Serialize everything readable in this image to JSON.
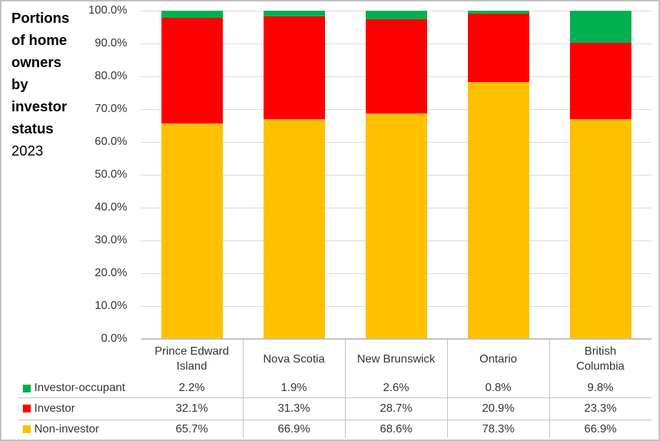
{
  "window": {
    "background": "#FFFFFF",
    "border_color": "#BFBFBF"
  },
  "title": {
    "lines": "Portions\nof home\nowners\nby\ninvestor\nstatus",
    "year": "2023",
    "full_text": "Portions of home owners by investor status 2023"
  },
  "chart_data": {
    "type": "bar",
    "subtype": "stacked-100-percent-column",
    "title": "Portions of home owners by investor status",
    "year": "2023",
    "grid": true,
    "legend_position": "table-left",
    "categories": [
      "Prince Edward Island",
      "Nova Scotia",
      "New Brunswick",
      "Ontario",
      "British Columbia"
    ],
    "category_labels": [
      "Prince Edward\nIsland",
      "Nova Scotia",
      "New Brunswick",
      "Ontario",
      "British\nColumbia"
    ],
    "series": [
      {
        "name": "Non-investor",
        "color": "#FFC000",
        "values": [
          65.7,
          66.9,
          68.6,
          78.3,
          66.9
        ]
      },
      {
        "name": "Investor",
        "color": "#FF0000",
        "values": [
          32.1,
          31.3,
          28.7,
          20.9,
          23.3
        ]
      },
      {
        "name": "Investor-occupant",
        "color": "#00B050",
        "values": [
          2.2,
          1.9,
          2.6,
          0.8,
          9.8
        ]
      }
    ],
    "stack_order_bottom_to_top": [
      "Non-investor",
      "Investor",
      "Investor-occupant"
    ],
    "y_axis": {
      "min": 0,
      "max": 100,
      "step": 10,
      "tick_labels": [
        "100.0%",
        "90.0%",
        "80.0%",
        "70.0%",
        "60.0%",
        "50.0%",
        "40.0%",
        "30.0%",
        "20.0%",
        "10.0%",
        "0.0%"
      ]
    },
    "data_table": {
      "row_order": [
        "Investor-occupant",
        "Investor",
        "Non-investor"
      ],
      "rows": [
        {
          "name": "Investor-occupant",
          "swatch_color": "#00B050",
          "values": [
            "2.2%",
            "1.9%",
            "2.6%",
            "0.8%",
            "9.8%"
          ]
        },
        {
          "name": "Investor",
          "swatch_color": "#FF0000",
          "values": [
            "32.1%",
            "31.3%",
            "28.7%",
            "20.9%",
            "23.3%"
          ]
        },
        {
          "name": "Non-investor",
          "swatch_color": "#FFC000",
          "values": [
            "65.7%",
            "66.9%",
            "68.6%",
            "78.3%",
            "66.9%"
          ]
        }
      ]
    }
  },
  "colors": {
    "gridline": "#D9D9D9",
    "axis_line": "#BFBFBF",
    "table_line": "#BFBFBF",
    "text": "#333333",
    "title_text": "#000000"
  }
}
